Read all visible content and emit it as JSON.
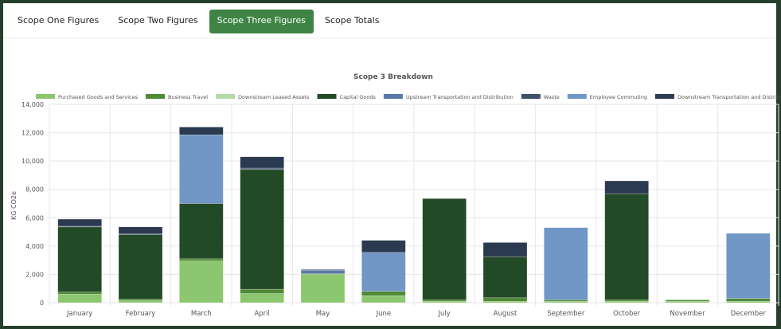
{
  "tabs": [
    "Scope One Figures",
    "Scope Two Figures",
    "Scope Three Figures",
    "Scope Totals"
  ],
  "active_tab": 2,
  "chart_data": {
    "type": "bar",
    "stacked": true,
    "title": "Scope 3 Breakdown",
    "y_label": "KG CO2e",
    "categories": [
      "January",
      "February",
      "March",
      "April",
      "May",
      "June",
      "July",
      "August",
      "September",
      "October",
      "November",
      "December"
    ],
    "series": [
      {
        "name": "Purchased Goods and Services",
        "color": "#8cc76f",
        "values": [
          600,
          150,
          2950,
          650,
          2000,
          500,
          100,
          100,
          100,
          100,
          100,
          100
        ]
      },
      {
        "name": "Business Travel",
        "color": "#4f8a36",
        "values": [
          150,
          100,
          150,
          300,
          50,
          300,
          100,
          250,
          100,
          100,
          100,
          200
        ]
      },
      {
        "name": "Downstream Leased Assets",
        "color": "#b4d9a6",
        "values": [
          0,
          0,
          0,
          0,
          0,
          0,
          0,
          0,
          0,
          0,
          0,
          0
        ]
      },
      {
        "name": "Capital Goods",
        "color": "#234a26",
        "values": [
          4600,
          4550,
          3900,
          8450,
          0,
          0,
          7150,
          2900,
          0,
          7500,
          0,
          0
        ]
      },
      {
        "name": "Upstream Transportation and Distribution",
        "color": "#5a78a6",
        "values": [
          0,
          0,
          0,
          0,
          250,
          0,
          0,
          0,
          0,
          0,
          0,
          0
        ]
      },
      {
        "name": "Waste",
        "color": "#3e516a",
        "values": [
          50,
          50,
          0,
          100,
          50,
          0,
          0,
          0,
          0,
          0,
          0,
          0
        ]
      },
      {
        "name": "Employee Commuting",
        "color": "#7097c6",
        "values": [
          0,
          0,
          4850,
          0,
          0,
          2750,
          0,
          0,
          5100,
          0,
          0,
          4600
        ]
      },
      {
        "name": "Downstream Transportation and Distribution",
        "color": "#2b3a50",
        "values": [
          500,
          500,
          550,
          800,
          0,
          850,
          0,
          1000,
          0,
          900,
          0,
          0
        ]
      }
    ],
    "ylim": [
      0,
      14000
    ],
    "yticks": [
      0,
      {
        "value": 2000,
        "label": "2,000"
      },
      {
        "value": 4000,
        "label": "4,000"
      },
      {
        "value": 6000,
        "label": "6,000"
      },
      {
        "value": 8000,
        "label": "8,000"
      },
      {
        "value": 10000,
        "label": "10,000"
      },
      {
        "value": 12000,
        "label": "12,000"
      },
      {
        "value": 14000,
        "label": "14,000"
      }
    ],
    "grid": true,
    "legend": "top"
  }
}
